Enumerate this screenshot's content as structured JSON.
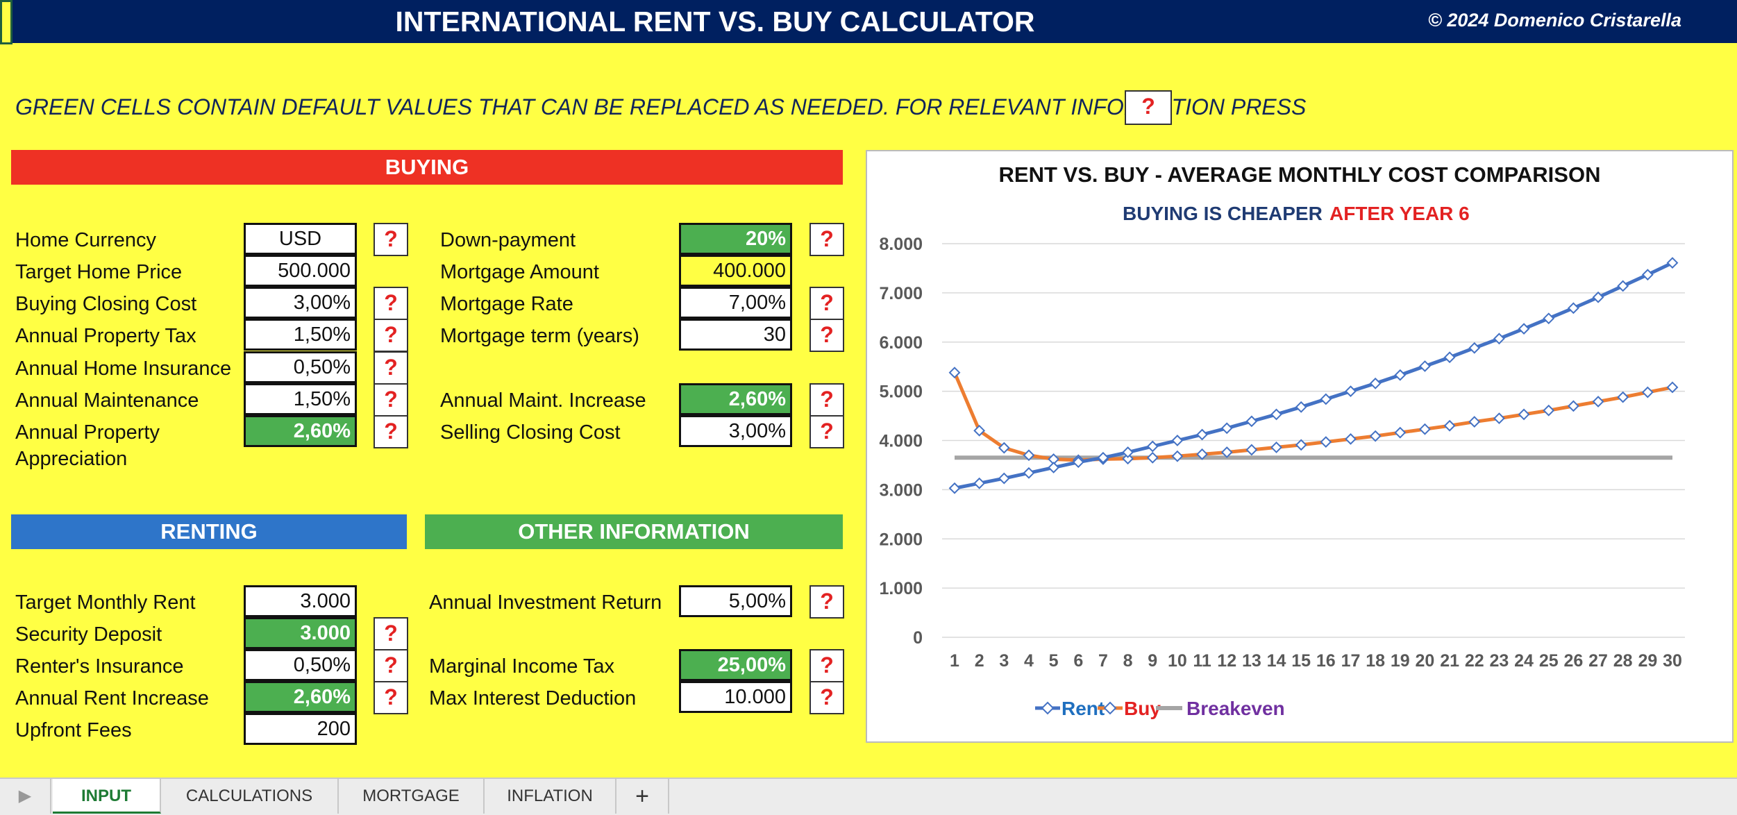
{
  "header": {
    "title": "INTERNATIONAL RENT VS. BUY CALCULATOR",
    "copyright": "© 2024 Domenico Cristarella"
  },
  "instructions": {
    "text": "GREEN CELLS CONTAIN DEFAULT VALUES THAT CAN BE REPLACED AS NEEDED. FOR RELEVANT INFORMATION PRESS",
    "help_symbol": "?"
  },
  "sections": {
    "buying": "BUYING",
    "renting": "RENTING",
    "other": "OTHER INFORMATION"
  },
  "buying": {
    "home_currency": {
      "label": "Home Currency",
      "value": "USD"
    },
    "target_home_price": {
      "label": "Target Home Price",
      "value": "500.000"
    },
    "buying_closing_cost": {
      "label": "Buying Closing Cost",
      "value": "3,00%"
    },
    "annual_property_tax": {
      "label": "Annual Property Tax",
      "value": "1,50%"
    },
    "annual_home_insurance": {
      "label": "Annual Home Insurance",
      "value": "0,50%"
    },
    "annual_maintenance": {
      "label": "Annual Maintenance",
      "value": "1,50%"
    },
    "annual_property_appreciation": {
      "label_line1": "Annual Property",
      "label_line2": "Appreciation",
      "value": "2,60%"
    },
    "down_payment": {
      "label": "Down-payment",
      "value": "20%"
    },
    "mortgage_amount": {
      "label": "Mortgage Amount",
      "value": "400.000"
    },
    "mortgage_rate": {
      "label": "Mortgage Rate",
      "value": "7,00%"
    },
    "mortgage_term": {
      "label": "Mortgage term (years)",
      "value": "30"
    },
    "annual_maint_increase": {
      "label": "Annual Maint. Increase",
      "value": "2,60%"
    },
    "selling_closing_cost": {
      "label": "Selling Closing Cost",
      "value": "3,00%"
    }
  },
  "renting": {
    "target_monthly_rent": {
      "label": "Target Monthly Rent",
      "value": "3.000"
    },
    "security_deposit": {
      "label": "Security Deposit",
      "value": "3.000"
    },
    "renters_insurance": {
      "label": "Renter's Insurance",
      "value": "0,50%"
    },
    "annual_rent_increase": {
      "label": "Annual Rent Increase",
      "value": "2,60%"
    },
    "upfront_fees": {
      "label": "Upfront Fees",
      "value": "200"
    }
  },
  "other": {
    "annual_investment_return": {
      "label": "Annual Investment Return",
      "value": "5,00%"
    },
    "marginal_income_tax": {
      "label": "Marginal Income Tax",
      "value": "25,00%"
    },
    "max_interest_deduction": {
      "label": "Max Interest Deduction",
      "value": "10.000"
    }
  },
  "colors": {
    "background": "#ffff44",
    "title_bar": "#002060",
    "buying": "#ee3124",
    "renting": "#2e75c9",
    "other": "#4caf50",
    "green_cell": "#4caf50",
    "help": "#e32222",
    "rent_line": "#4472c4",
    "buy_line": "#ed7d31",
    "breakeven_line": "#a5a5a5"
  },
  "chart_data": {
    "type": "line",
    "title": "RENT VS. BUY - AVERAGE MONTHLY COST COMPARISON",
    "subtitle_part1": "BUYING IS CHEAPER",
    "subtitle_part2": "AFTER YEAR 6",
    "x": [
      1,
      2,
      3,
      4,
      5,
      6,
      7,
      8,
      9,
      10,
      11,
      12,
      13,
      14,
      15,
      16,
      17,
      18,
      19,
      20,
      21,
      22,
      23,
      24,
      25,
      26,
      27,
      28,
      29,
      30
    ],
    "ylim": [
      0,
      8000
    ],
    "yticks": [
      0,
      1000,
      2000,
      3000,
      4000,
      5000,
      6000,
      7000,
      8000
    ],
    "ytick_labels": [
      "0",
      "1.000",
      "2.000",
      "3.000",
      "4.000",
      "5.000",
      "6.000",
      "7.000",
      "8.000"
    ],
    "grid": true,
    "legend_position": "bottom",
    "series": [
      {
        "name": "Rent",
        "color": "#4472c4",
        "marker": "diamond",
        "values": [
          3030,
          3130,
          3230,
          3340,
          3450,
          3560,
          3650,
          3760,
          3880,
          4000,
          4120,
          4250,
          4390,
          4530,
          4680,
          4840,
          5000,
          5160,
          5330,
          5510,
          5690,
          5880,
          6070,
          6270,
          6480,
          6690,
          6910,
          7140,
          7370,
          7610
        ]
      },
      {
        "name": "Buy",
        "color": "#ed7d31",
        "marker": "diamond",
        "values": [
          5380,
          4200,
          3850,
          3700,
          3620,
          3600,
          3620,
          3630,
          3650,
          3680,
          3720,
          3760,
          3810,
          3860,
          3910,
          3970,
          4030,
          4090,
          4160,
          4230,
          4300,
          4380,
          4450,
          4530,
          4610,
          4700,
          4790,
          4880,
          4980,
          5080
        ]
      },
      {
        "name": "Breakeven",
        "color": "#a5a5a5",
        "marker": "none",
        "values": [
          3650,
          3650,
          3650,
          3650,
          3650,
          3650,
          3650,
          3650,
          3650,
          3650,
          3650,
          3650,
          3650,
          3650,
          3650,
          3650,
          3650,
          3650,
          3650,
          3650,
          3650,
          3650,
          3650,
          3650,
          3650,
          3650,
          3650,
          3650,
          3650,
          3650
        ]
      }
    ]
  },
  "tabs": {
    "input": "INPUT",
    "calculations": "CALCULATIONS",
    "mortgage": "MORTGAGE",
    "inflation": "INFLATION",
    "add": "+"
  }
}
